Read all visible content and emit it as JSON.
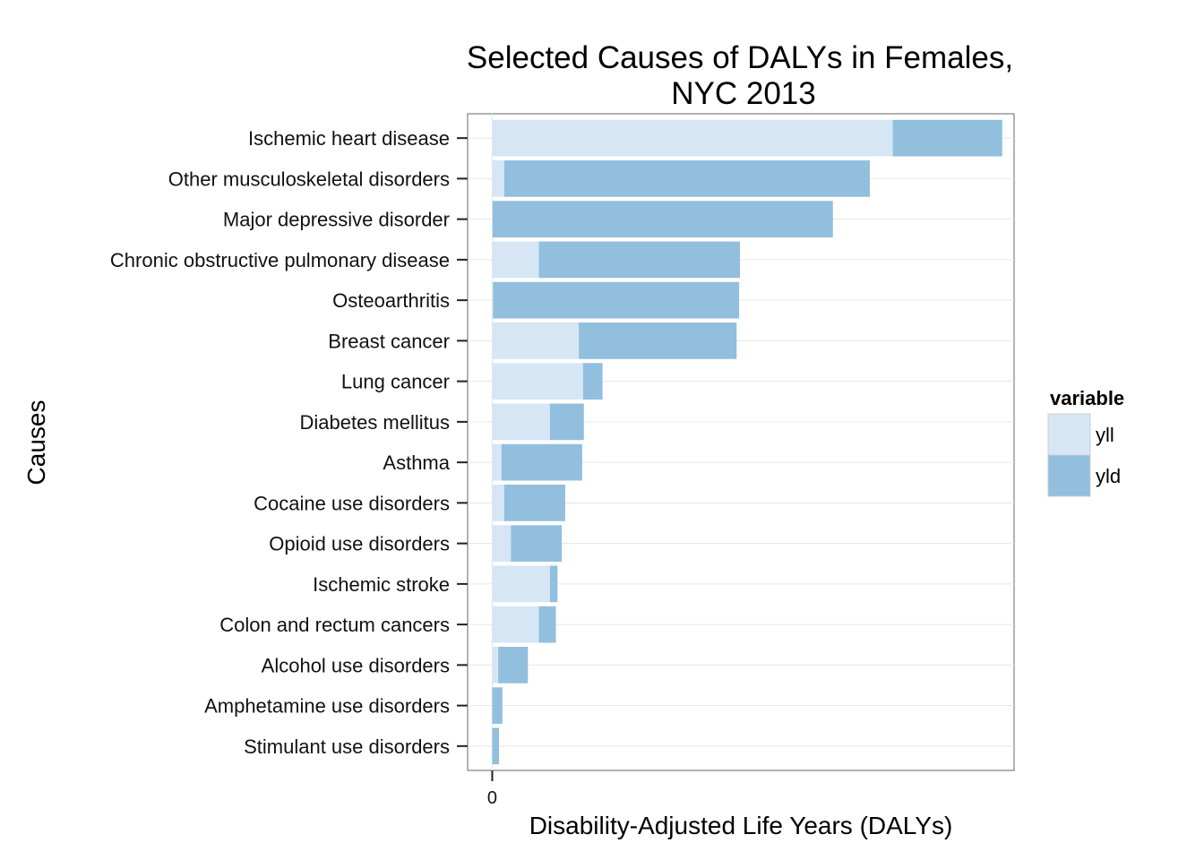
{
  "chart_data": {
    "type": "bar",
    "orientation": "horizontal",
    "stacked": true,
    "title_lines": [
      "Selected Causes of DALYs in Females,",
      "NYC 2013"
    ],
    "xlabel": "Disability-Adjusted Life Years (DALYs)",
    "ylabel": "Causes",
    "x_ticks": [
      0
    ],
    "xlim": [
      -290,
      6150
    ],
    "grid": true,
    "legend": {
      "title": "variable",
      "position": "right"
    },
    "categories": [
      "Ischemic heart disease",
      "Other musculoskeletal disorders",
      "Major depressive disorder",
      "Chronic obstructive pulmonary disease",
      "Osteoarthritis",
      "Breast cancer",
      "Lung cancer",
      "Diabetes mellitus",
      "Asthma",
      "Cocaine use disorders",
      "Opioid use disorders",
      "Ischemic stroke",
      "Colon and rectum cancers",
      "Alcohol use disorders",
      "Amphetamine use disorders",
      "Stimulant use disorders"
    ],
    "series": [
      {
        "name": "yll",
        "color": "#d6e6f5",
        "values": [
          4720,
          140,
          5,
          550,
          10,
          1020,
          1070,
          680,
          110,
          140,
          220,
          680,
          550,
          70,
          0,
          0
        ]
      },
      {
        "name": "yld",
        "color": "#92bfdd",
        "values": [
          1290,
          4310,
          4010,
          2370,
          2900,
          1860,
          230,
          400,
          950,
          720,
          600,
          90,
          200,
          350,
          120,
          80
        ]
      }
    ]
  }
}
